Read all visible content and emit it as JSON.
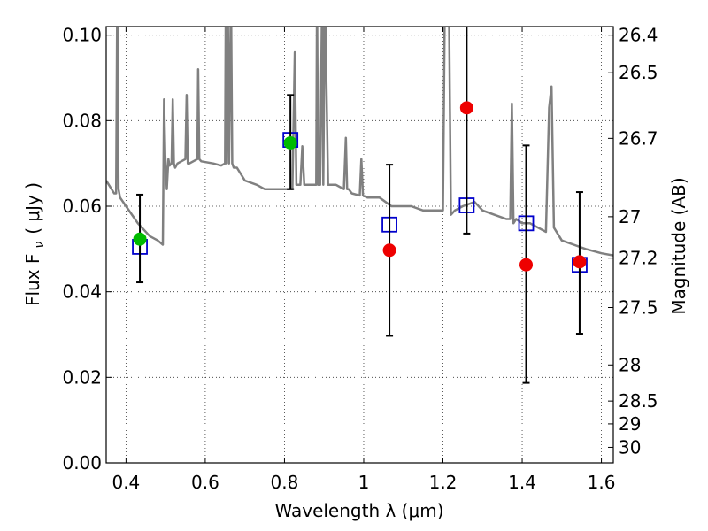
{
  "chart_data": {
    "type": "scatter",
    "title": "",
    "xlabel": "Wavelength  λ (μm)",
    "ylabel": "Flux  F",
    "ylabel_sub": "ν",
    "ylabel_unit": "( μJy )",
    "y2label": "Magnitude (AB)",
    "xlim": [
      0.35,
      1.63
    ],
    "ylim": [
      0.0,
      0.102
    ],
    "grid": true,
    "x_ticks": [
      0.4,
      0.6,
      0.8,
      1.0,
      1.2,
      1.4,
      1.6
    ],
    "x_tick_labels": [
      "0.4",
      "0.6",
      "0.8",
      "1",
      "1.2",
      "1.4",
      "1.6"
    ],
    "y_ticks": [
      0.0,
      0.02,
      0.04,
      0.06,
      0.08,
      0.1
    ],
    "y_tick_labels": [
      "0.00",
      "0.02",
      "0.04",
      "0.06",
      "0.08",
      "0.10"
    ],
    "y2_ticks": [
      26.4,
      26.5,
      26.7,
      27,
      27.2,
      27.5,
      28,
      28.5,
      29,
      30
    ],
    "y2_tick_labels": [
      "26.4",
      "26.5",
      "26.7",
      "27",
      "27.2",
      "27.5",
      "28",
      "28.5",
      "29",
      "30"
    ],
    "series": [
      {
        "kind": "observed",
        "x": [
          0.435,
          0.815,
          1.065,
          1.26,
          1.41,
          1.545
        ],
        "y": [
          0.0523,
          0.0748,
          0.0497,
          0.083,
          0.0463,
          0.047
        ],
        "yerr_low": [
          0.0422,
          0.064,
          0.0297,
          0.0536,
          0.0187,
          0.0302
        ],
        "yerr_high": [
          0.0627,
          0.086,
          0.0697,
          0.105,
          0.0742,
          0.0633
        ],
        "colors": [
          "#00bb00",
          "#00bb00",
          "#ee0000",
          "#ee0000",
          "#ee0000",
          "#ee0000"
        ]
      },
      {
        "kind": "model-photometry",
        "x": [
          0.435,
          0.815,
          1.065,
          1.26,
          1.41,
          1.545
        ],
        "y": [
          0.0505,
          0.0755,
          0.0557,
          0.0602,
          0.056,
          0.0463
        ],
        "color": "#0000cc"
      },
      {
        "kind": "spectrum",
        "color": "#808080",
        "x": [
          0.35,
          0.37,
          0.375,
          0.378,
          0.381,
          0.385,
          0.4,
          0.43,
          0.46,
          0.48,
          0.493,
          0.496,
          0.499,
          0.503,
          0.507,
          0.51,
          0.515,
          0.518,
          0.521,
          0.524,
          0.53,
          0.55,
          0.553,
          0.556,
          0.56,
          0.58,
          0.582,
          0.585,
          0.59,
          0.62,
          0.64,
          0.65,
          0.652,
          0.654,
          0.657,
          0.66,
          0.665,
          0.668,
          0.672,
          0.68,
          0.7,
          0.73,
          0.75,
          0.78,
          0.8,
          0.82,
          0.826,
          0.83,
          0.84,
          0.845,
          0.85,
          0.87,
          0.88,
          0.882,
          0.885,
          0.89,
          0.895,
          0.898,
          0.902,
          0.91,
          0.93,
          0.95,
          0.955,
          0.958,
          0.962,
          0.97,
          0.99,
          0.994,
          0.998,
          1.01,
          1.04,
          1.07,
          1.1,
          1.12,
          1.15,
          1.18,
          1.2,
          1.205,
          1.21,
          1.215,
          1.22,
          1.23,
          1.25,
          1.28,
          1.3,
          1.33,
          1.36,
          1.37,
          1.374,
          1.378,
          1.385,
          1.4,
          1.42,
          1.44,
          1.46,
          1.468,
          1.474,
          1.48,
          1.5,
          1.53,
          1.56,
          1.6,
          1.63
        ],
        "y": [
          0.066,
          0.063,
          0.063,
          0.11,
          0.064,
          0.062,
          0.06,
          0.056,
          0.053,
          0.052,
          0.051,
          0.085,
          0.072,
          0.064,
          0.071,
          0.0695,
          0.07,
          0.085,
          0.07,
          0.069,
          0.07,
          0.071,
          0.086,
          0.07,
          0.07,
          0.071,
          0.092,
          0.071,
          0.0705,
          0.07,
          0.0695,
          0.07,
          0.11,
          0.07,
          0.11,
          0.07,
          0.11,
          0.07,
          0.069,
          0.069,
          0.066,
          0.065,
          0.064,
          0.064,
          0.064,
          0.064,
          0.096,
          0.065,
          0.065,
          0.074,
          0.065,
          0.065,
          0.065,
          0.11,
          0.065,
          0.065,
          0.11,
          0.065,
          0.11,
          0.065,
          0.065,
          0.064,
          0.076,
          0.064,
          0.064,
          0.063,
          0.0625,
          0.071,
          0.0625,
          0.062,
          0.062,
          0.06,
          0.06,
          0.06,
          0.059,
          0.059,
          0.059,
          0.11,
          0.11,
          0.11,
          0.058,
          0.059,
          0.06,
          0.061,
          0.059,
          0.058,
          0.057,
          0.057,
          0.084,
          0.056,
          0.057,
          0.056,
          0.056,
          0.055,
          0.054,
          0.083,
          0.088,
          0.055,
          0.052,
          0.051,
          0.05,
          0.049,
          0.0485
        ]
      }
    ]
  }
}
